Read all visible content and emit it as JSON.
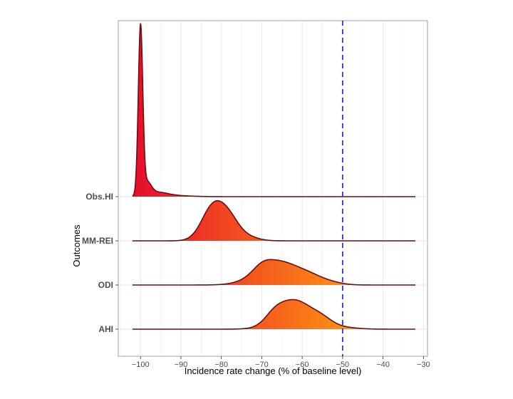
{
  "chart_data": {
    "type": "ridgeline",
    "title": "",
    "xlabel": "Incidence rate change (% of baseline level)",
    "ylabel": "Outcomes",
    "xlim": [
      -105.5,
      -29
    ],
    "xticks": [
      -100,
      -90,
      -80,
      -70,
      -60,
      -50,
      -40,
      -30
    ],
    "grid": true,
    "reference_line": {
      "x": -50,
      "style": "dashed",
      "color": "#3030e0"
    },
    "fill_gradient": [
      "#e8112d",
      "#ff9a10"
    ],
    "outline_color": "#6b0f0f",
    "data_range": [
      -102,
      -32
    ],
    "series": [
      {
        "name": "AHI",
        "peaks": [
          {
            "mu": -62,
            "sigma": 4.4,
            "amp": 0.135
          },
          {
            "mu": -67,
            "sigma": 2.2,
            "amp": 0.03
          },
          {
            "mu": -55,
            "sigma": 2.6,
            "amp": 0.03
          },
          {
            "mu": -50,
            "sigma": 3.5,
            "amp": 0.008
          }
        ]
      },
      {
        "name": "ODI",
        "peaks": [
          {
            "mu": -66,
            "sigma": 5.2,
            "amp": 0.11
          },
          {
            "mu": -70,
            "sigma": 2.2,
            "amp": 0.025
          },
          {
            "mu": -58,
            "sigma": 3.2,
            "amp": 0.025
          },
          {
            "mu": -53,
            "sigma": 3.0,
            "amp": 0.01
          }
        ]
      },
      {
        "name": "MM-REI",
        "peaks": [
          {
            "mu": -82,
            "sigma": 2.8,
            "amp": 0.16
          },
          {
            "mu": -78,
            "sigma": 2.4,
            "amp": 0.08
          },
          {
            "mu": -74,
            "sigma": 2.8,
            "amp": 0.02
          }
        ]
      },
      {
        "name": "Obs.HI",
        "peaks": [
          {
            "mu": -100,
            "sigma": 0.55,
            "amp": 0.78
          },
          {
            "mu": -98.5,
            "sigma": 1.1,
            "amp": 0.06
          },
          {
            "mu": -96,
            "sigma": 2.5,
            "amp": 0.018
          },
          {
            "mu": -92,
            "sigma": 4.0,
            "amp": 0.005
          }
        ]
      }
    ]
  }
}
